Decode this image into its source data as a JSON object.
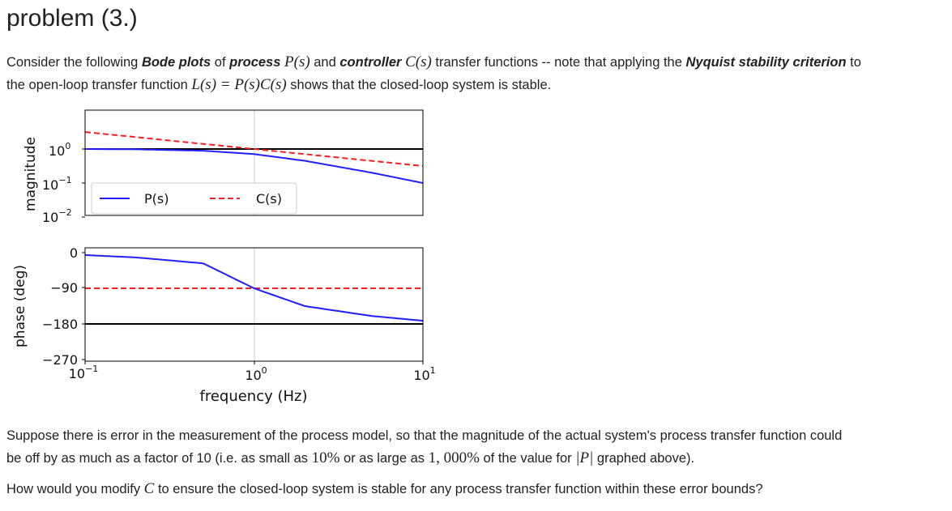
{
  "title": "problem (3.)",
  "intro": {
    "t1": "Consider the following ",
    "bode": "Bode plots",
    "t2": " of ",
    "process": "process",
    "P_s": "P(s)",
    "t3": " and ",
    "controller": "controller",
    "C_s": "C(s)",
    "t4": " transfer functions -- note that applying the ",
    "nyquist": "Nyquist stability criterion",
    "t5": " to",
    "t6": "the open-loop transfer function ",
    "L_expr": "L(s) = P(s)C(s)",
    "t7": " shows that the closed-loop system is stable."
  },
  "question": {
    "line1": "Suppose there is error in the measurement of the process model, so that the magnitude of the actual system's process transfer function could",
    "l2a": "be off by as much as a factor of 10 (i.e. as small as ",
    "pct10": "10%",
    "l2b": " or as large as ",
    "pct1000": "1, 000%",
    "l2c": " of the value for ",
    "absP": "|P|",
    "l2d": " graphed above).",
    "l3a": "How would you modify ",
    "C": "C",
    "l3b": " to ensure the closed-loop system is stable for any process transfer function within these error bounds?"
  },
  "chart_data": [
    {
      "type": "line",
      "panel": "magnitude",
      "ylabel": "magnitude",
      "xscale": "log",
      "yscale": "log",
      "xlim": [
        0.1,
        10
      ],
      "ylim": [
        0.01,
        3.5
      ],
      "yticks": [
        1,
        0.1,
        0.01
      ],
      "ytick_labels": [
        {
          "base": "10",
          "exp": "0"
        },
        {
          "base": "10",
          "exp": "−1"
        },
        {
          "base": "10",
          "exp": "−2"
        }
      ],
      "legend": [
        "P(s)",
        "C(s)"
      ],
      "legend_position": "center-left",
      "series": [
        {
          "name": "P(s)",
          "style": "solid",
          "color": "#1f1fff",
          "x": [
            0.1,
            0.2,
            0.5,
            1,
            2,
            5,
            10
          ],
          "y": [
            1.0,
            0.98,
            0.89,
            0.71,
            0.45,
            0.2,
            0.1
          ]
        },
        {
          "name": "C(s)",
          "style": "dashed",
          "color": "#ff1f1f",
          "x": [
            0.1,
            1,
            10
          ],
          "y": [
            3.16,
            1.0,
            0.316
          ]
        }
      ],
      "reference_lines": [
        {
          "y": 1,
          "color": "#000000"
        }
      ],
      "vertical_line": 1
    },
    {
      "type": "line",
      "panel": "phase",
      "ylabel": "phase (deg)",
      "xlabel": "frequency (Hz)",
      "xscale": "log",
      "xlim": [
        0.1,
        10
      ],
      "ylim": [
        -270,
        0
      ],
      "yticks": [
        0,
        -90,
        -180,
        -270
      ],
      "ytick_labels": [
        "0",
        "−90",
        "−180",
        "−270"
      ],
      "xticks": [
        0.1,
        1,
        10
      ],
      "xtick_labels": [
        {
          "base": "10",
          "exp": "−1"
        },
        {
          "base": "10",
          "exp": "0"
        },
        {
          "base": "10",
          "exp": "1"
        }
      ],
      "series": [
        {
          "name": "P(s)",
          "style": "solid",
          "color": "#1f1fff",
          "x": [
            0.1,
            0.2,
            0.5,
            1,
            2,
            5,
            10
          ],
          "y": [
            -6,
            -12,
            -27,
            -90,
            -135,
            -160,
            -172
          ]
        },
        {
          "name": "C(s)",
          "style": "dashed",
          "color": "#ff1f1f",
          "x": [
            0.1,
            10
          ],
          "y": [
            -90,
            -90
          ]
        }
      ],
      "reference_lines": [
        {
          "y": -180,
          "color": "#000000"
        }
      ],
      "vertical_line": 1
    }
  ]
}
